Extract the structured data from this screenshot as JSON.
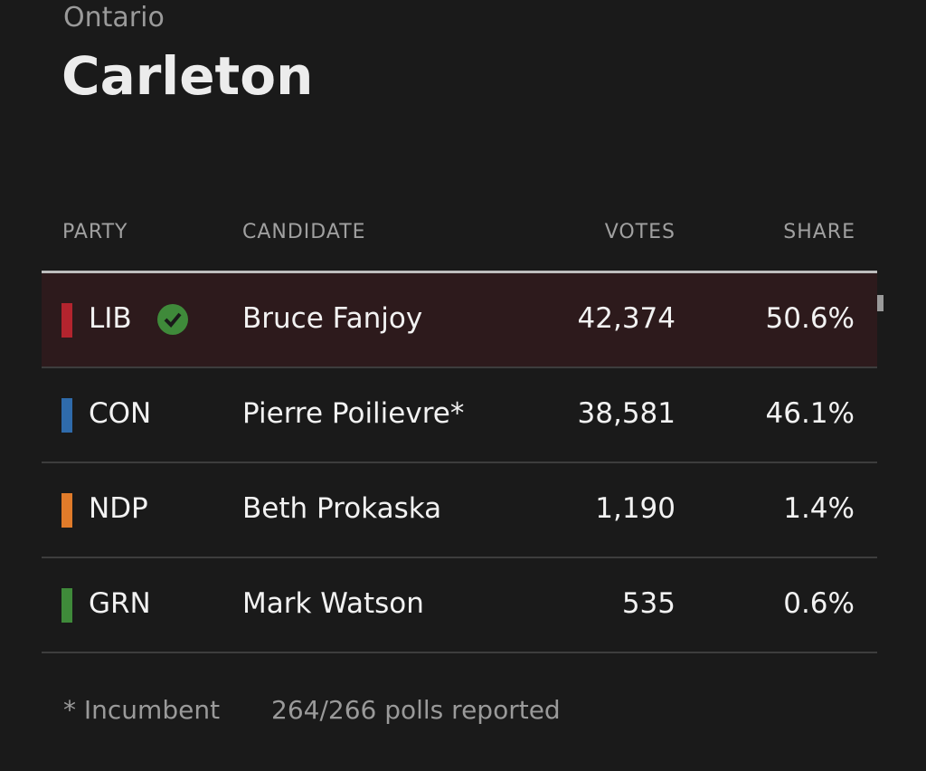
{
  "header": {
    "region": "Ontario",
    "title": "Carleton"
  },
  "table": {
    "columns": [
      "PARTY",
      "CANDIDATE",
      "VOTES",
      "SHARE"
    ],
    "rows": [
      {
        "party": "LIB",
        "candidate": "Bruce Fanjoy",
        "votes": "42,374",
        "share": "50.6%",
        "color": "#b3242e",
        "winner": true
      },
      {
        "party": "CON",
        "candidate": "Pierre Poilievre*",
        "votes": "38,581",
        "share": "46.1%",
        "color": "#2f6bab",
        "winner": false
      },
      {
        "party": "NDP",
        "candidate": "Beth Prokaska",
        "votes": "1,190",
        "share": "1.4%",
        "color": "#e07b2a",
        "winner": false
      },
      {
        "party": "GRN",
        "candidate": "Mark Watson",
        "votes": "535",
        "share": "0.6%",
        "color": "#3f8a3a",
        "winner": false
      }
    ]
  },
  "footer": {
    "note": "* Incumbent",
    "polls": "264/266 polls reported"
  }
}
